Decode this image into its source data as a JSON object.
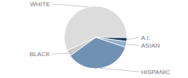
{
  "chart_data": {
    "type": "pie",
    "categories": [
      "WHITE",
      "A.I.",
      "ASIAN",
      "HISPANIC",
      "BLACK"
    ],
    "values": [
      57,
      2,
      3,
      35,
      3
    ],
    "colors": [
      "#dcdcdc",
      "#1f3b5c",
      "#8fb0cf",
      "#7191b3",
      "#c9c9c9"
    ]
  }
}
